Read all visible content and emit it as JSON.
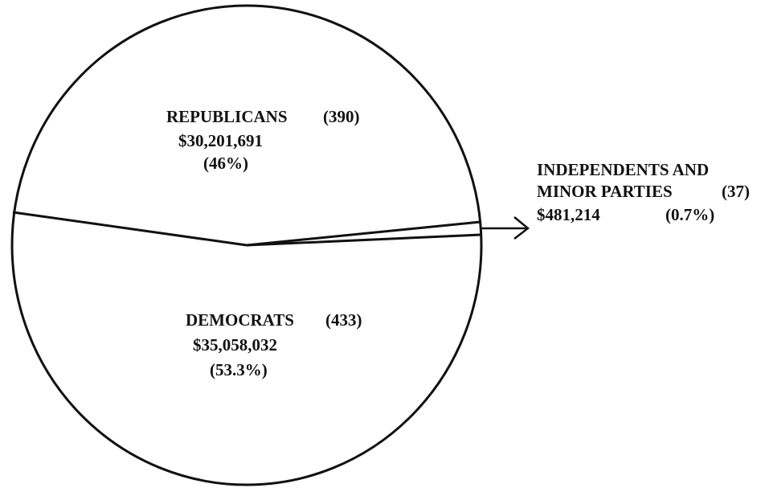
{
  "chart_data": {
    "type": "pie",
    "slices": [
      {
        "name": "REPUBLICANS",
        "count": "(390)",
        "amount": "$30,201,691",
        "percent_label": "(46%)",
        "value": 46.0
      },
      {
        "name": "DEMOCRATS",
        "count": "(433)",
        "amount": "$35,058,032",
        "percent_label": "(53.3%)",
        "value": 53.3
      },
      {
        "name_line1": "INDEPENDENTS AND",
        "name_line2": "MINOR PARTIES",
        "count": "(37)",
        "amount": "$481,214",
        "percent_label": "(0.7%)",
        "value": 0.7
      }
    ]
  },
  "colors": {
    "ink": "#111111",
    "background": "#ffffff"
  }
}
